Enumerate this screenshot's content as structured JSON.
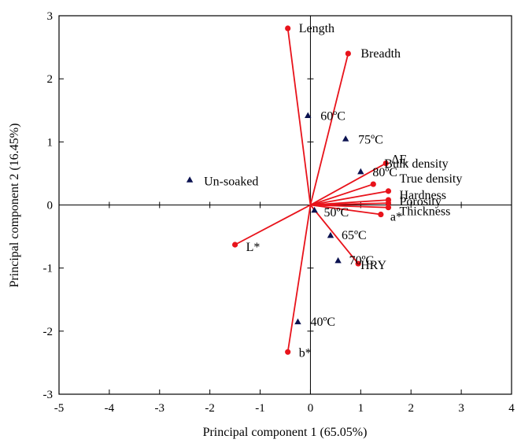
{
  "chart_data": {
    "type": "scatter",
    "subtype": "biplot",
    "title": "",
    "xlabel": "Principal component 1 (65.05%)",
    "ylabel": "Principal component 2 (16.45%)",
    "xlim": [
      -5,
      4
    ],
    "ylim": [
      -3,
      3
    ],
    "xticks": [
      "-5",
      "-4",
      "-3",
      "-2",
      "-1",
      "0",
      "1",
      "2",
      "3",
      "4"
    ],
    "yticks": [
      "3",
      "2",
      "1",
      "0",
      "-1",
      "-2",
      "-3"
    ],
    "grid": false,
    "legend": "none",
    "colors": {
      "loading": "#e8131b",
      "score": "#0b1250",
      "axis": "#000000"
    },
    "loadings": [
      {
        "label": "Length",
        "x": -0.45,
        "y": 2.8
      },
      {
        "label": "Breadth",
        "x": 0.75,
        "y": 2.4
      },
      {
        "label": "ΔE",
        "x": 1.5,
        "y": 0.66
      },
      {
        "label": "Bulk density",
        "x": 1.25,
        "y": 0.33
      },
      {
        "label": "True density",
        "x": 1.55,
        "y": 0.22
      },
      {
        "label": "Hardness",
        "x": 1.55,
        "y": 0.08
      },
      {
        "label": "Porosity",
        "x": 1.55,
        "y": 0.03
      },
      {
        "label": "Thickness",
        "x": 1.55,
        "y": -0.04
      },
      {
        "label": "a*",
        "x": 1.4,
        "y": -0.15
      },
      {
        "label": "HRY",
        "x": 0.95,
        "y": -0.93
      },
      {
        "label": "L*",
        "x": -1.5,
        "y": -0.63
      },
      {
        "label": "b*",
        "x": -0.45,
        "y": -2.33
      }
    ],
    "scores": [
      {
        "label": "Un-soaked",
        "x": -2.4,
        "y": 0.4
      },
      {
        "label": "60ºC",
        "x": -0.05,
        "y": 1.42
      },
      {
        "label": "75ºC",
        "x": 0.7,
        "y": 1.05
      },
      {
        "label": "80ºC",
        "x": 1.0,
        "y": 0.53
      },
      {
        "label": "50ºC",
        "x": 0.08,
        "y": -0.08
      },
      {
        "label": "65ºC",
        "x": 0.4,
        "y": -0.48
      },
      {
        "label": "70ºC",
        "x": 0.55,
        "y": -0.88
      },
      {
        "label": "40ºC",
        "x": -0.25,
        "y": -1.85
      }
    ]
  }
}
